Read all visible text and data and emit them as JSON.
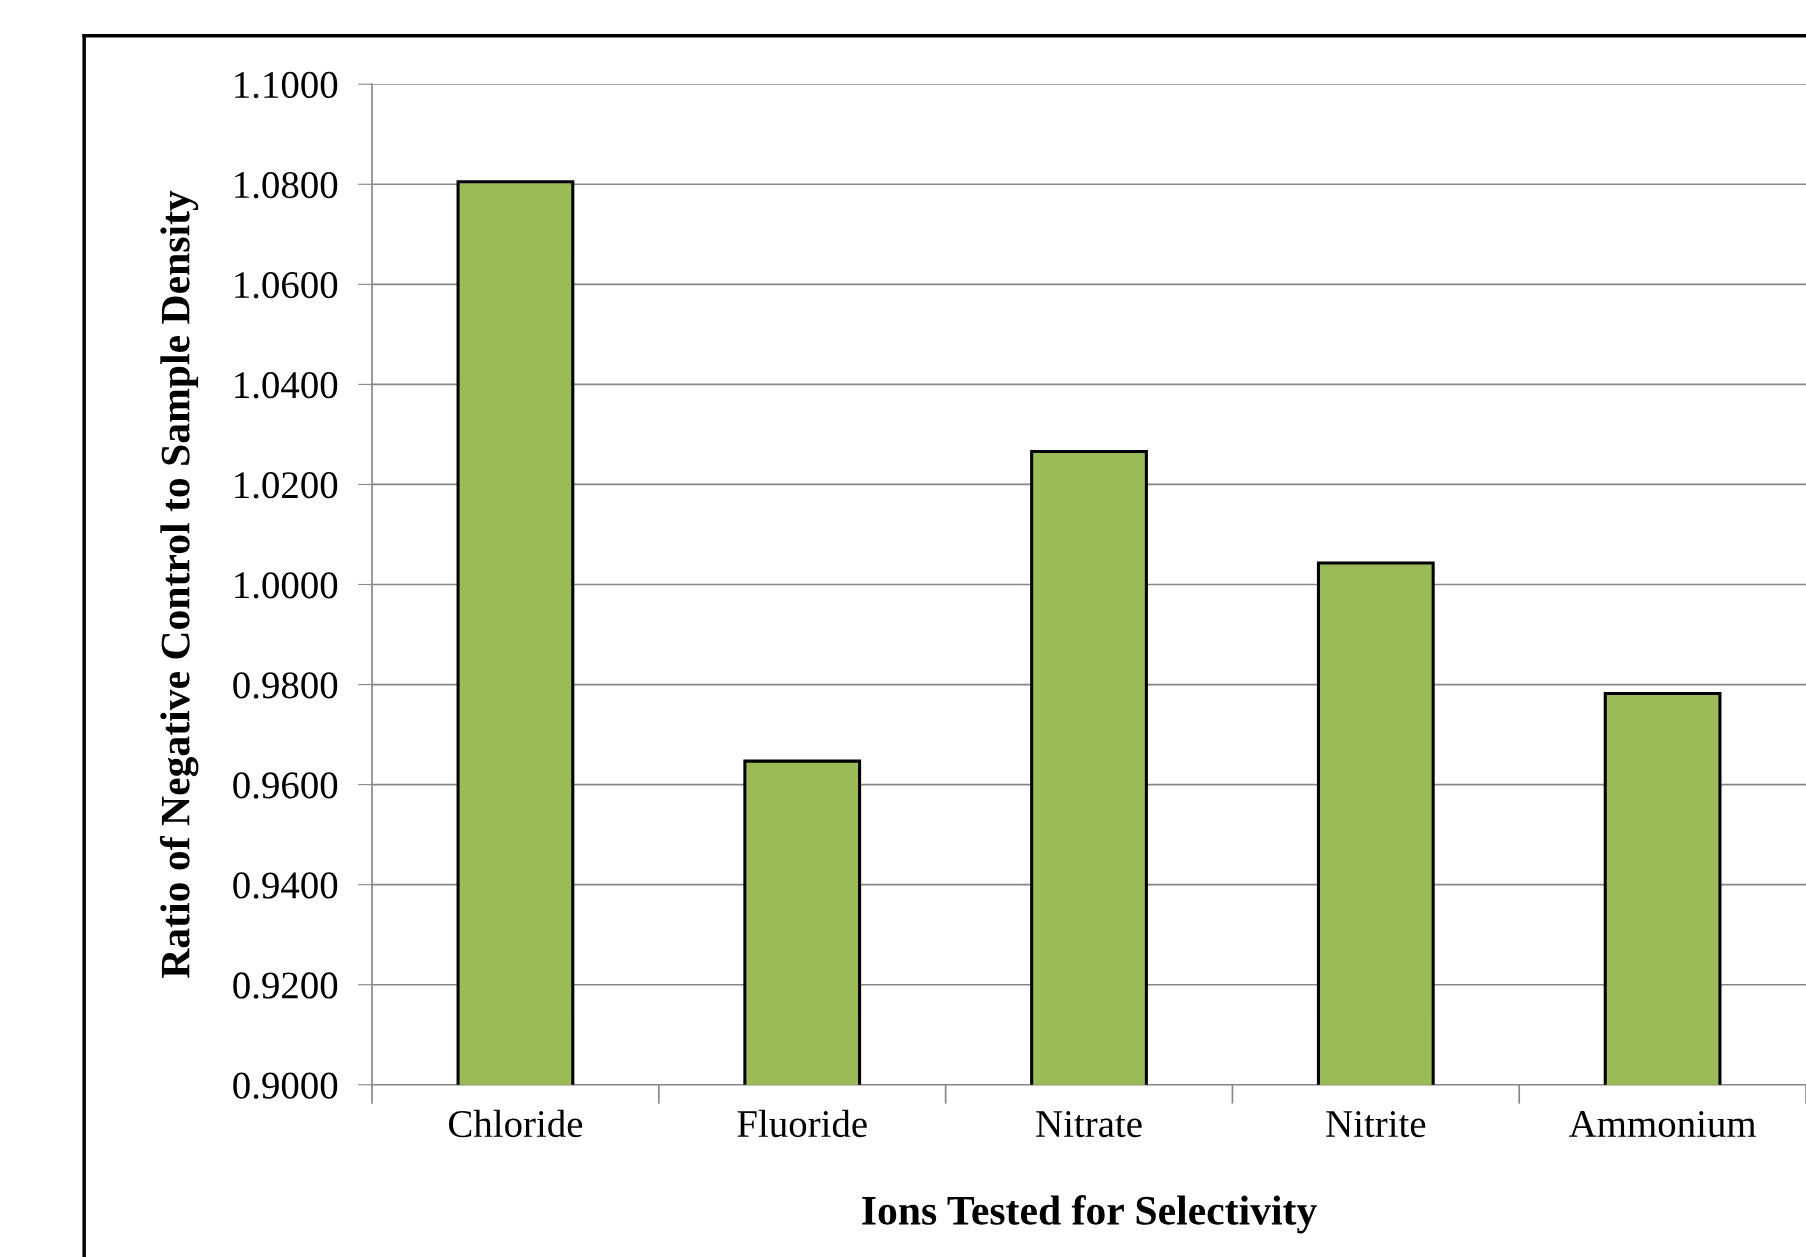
{
  "chart_data": {
    "type": "bar",
    "xlabel": "Ions Tested for Selectivity",
    "ylabel": "Ratio of Negative Control to Sample Density",
    "categories": [
      "Chloride",
      "Fluoride",
      "Nitrate",
      "Nitrite",
      "Ammonium"
    ],
    "values": [
      1.0805,
      0.9647,
      1.0266,
      1.0043,
      0.9782
    ],
    "color": "#9bbb59",
    "ylim": [
      0.9,
      1.1
    ],
    "yticks": [
      {
        "value": 0.9,
        "label": "0.9000"
      },
      {
        "value": 0.92,
        "label": "0.9200"
      },
      {
        "value": 0.94,
        "label": "0.9400"
      },
      {
        "value": 0.96,
        "label": "0.9600"
      },
      {
        "value": 0.98,
        "label": "0.9800"
      },
      {
        "value": 1.0,
        "label": "1.0000"
      },
      {
        "value": 1.02,
        "label": "1.0200"
      },
      {
        "value": 1.04,
        "label": "1.0400"
      },
      {
        "value": 1.06,
        "label": "1.0600"
      },
      {
        "value": 1.08,
        "label": "1.0800"
      },
      {
        "value": 1.1,
        "label": "1.1000"
      }
    ],
    "grid": "y"
  }
}
